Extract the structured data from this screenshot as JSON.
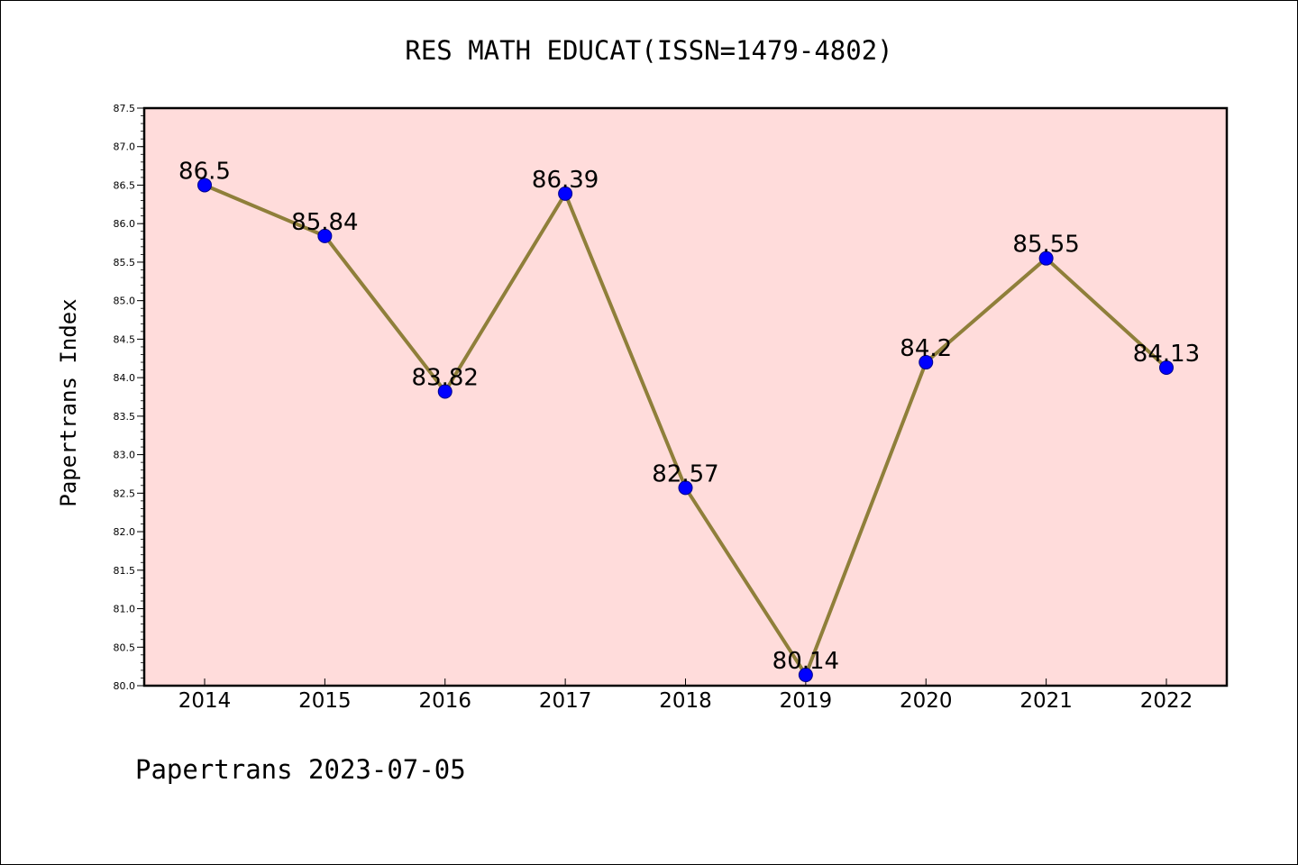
{
  "chart_data": {
    "type": "line",
    "title": "RES MATH EDUCAT(ISSN=1479-4802)",
    "xlabel": "",
    "ylabel": "Papertrans Index",
    "categories": [
      "2014",
      "2015",
      "2016",
      "2017",
      "2018",
      "2019",
      "2020",
      "2021",
      "2022"
    ],
    "values": [
      86.5,
      85.84,
      83.82,
      86.39,
      82.57,
      80.14,
      84.2,
      85.55,
      84.13
    ],
    "data_labels": [
      "86.5",
      "85.84",
      "83.82",
      "86.39",
      "82.57",
      "80.14",
      "84.2",
      "85.55",
      "84.13"
    ],
    "ylim": [
      80.0,
      87.5
    ],
    "y_ticks": [
      "80.0",
      "80.5",
      "81.0",
      "81.5",
      "82.0",
      "82.5",
      "83.0",
      "83.5",
      "84.0",
      "84.5",
      "85.0",
      "85.5",
      "86.0",
      "86.5",
      "87.0",
      "87.5"
    ],
    "grid": false,
    "legend": "none",
    "colors": {
      "plot_background": "#ffdcdb",
      "line": "#8f7f3a",
      "marker": "#0000ff",
      "marker_edge": "#00008b",
      "axis": "#000000"
    }
  },
  "footer": "Papertrans 2023-07-05"
}
